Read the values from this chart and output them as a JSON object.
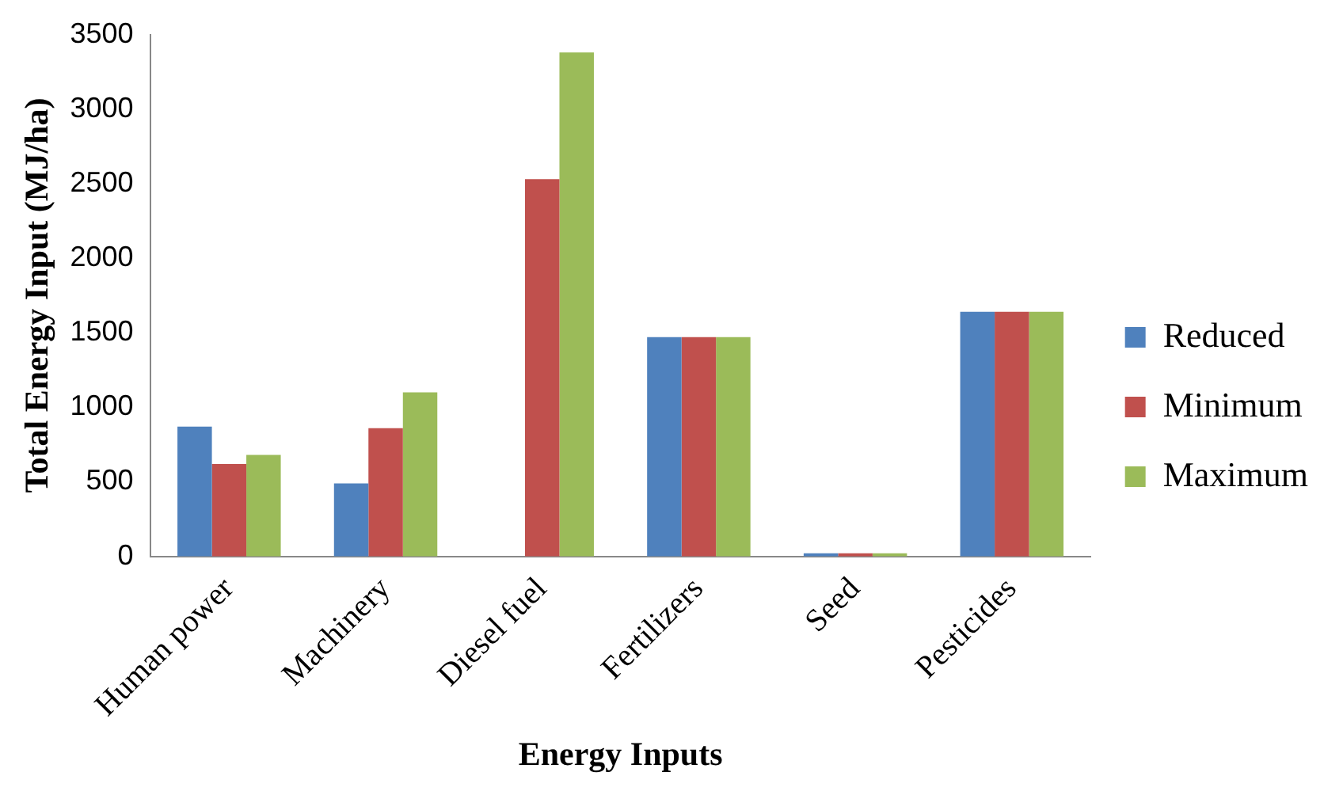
{
  "chart_data": {
    "type": "bar",
    "xlabel": "Energy Inputs",
    "ylabel": "Total Energy Input (MJ/ha)",
    "categories": [
      "Human power",
      "Machinery",
      "Diesel fuel",
      "Fertilizers",
      "Seed",
      "Pesticides"
    ],
    "series": [
      {
        "name": "Reduced",
        "color": "#4f81bd",
        "values": [
          870,
          490,
          0,
          1470,
          20,
          1640
        ]
      },
      {
        "name": "Minimum",
        "color": "#c0504d",
        "values": [
          620,
          860,
          2530,
          1470,
          20,
          1640
        ]
      },
      {
        "name": "Maximum",
        "color": "#9bbb59",
        "values": [
          680,
          1100,
          3380,
          1470,
          20,
          1640
        ]
      }
    ],
    "ylim": [
      0,
      3500
    ],
    "yticks": [
      0,
      500,
      1000,
      1500,
      2000,
      2500,
      3000,
      3500
    ],
    "grid": false,
    "legend": "right"
  }
}
